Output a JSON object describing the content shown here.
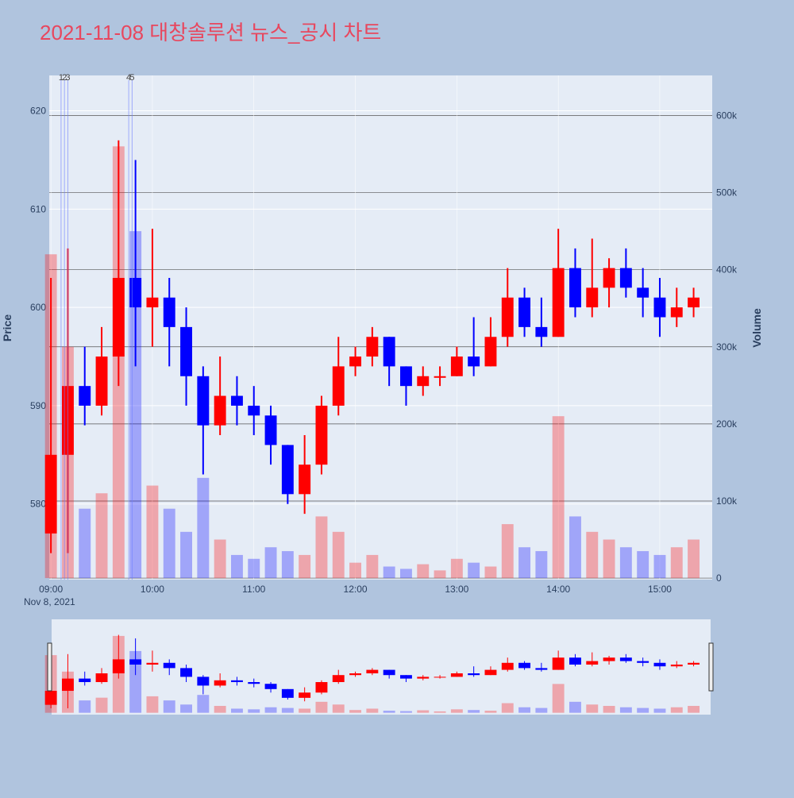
{
  "chart_data": {
    "type": "candlestick",
    "title": "2021-11-08 대창솔루션 뉴스_공시 차트",
    "x_date_label": "Nov 8, 2021",
    "y_title": "Price",
    "y2_title": "Volume",
    "xlim": [
      "08:59",
      "15:31"
    ],
    "xticks": [
      "09:00",
      "10:00",
      "11:00",
      "12:00",
      "13:00",
      "14:00",
      "15:00"
    ],
    "ylim": [
      572.3,
      623.6
    ],
    "yticks": [
      580,
      590,
      600,
      610,
      620
    ],
    "y2lim": [
      -2000,
      652000
    ],
    "y2ticks": [
      0,
      {
        "value": 100000,
        "label": "100k"
      },
      {
        "value": 200000,
        "label": "200k"
      },
      {
        "value": 300000,
        "label": "300k"
      },
      {
        "value": 400000,
        "label": "400k"
      },
      {
        "value": 500000,
        "label": "500k"
      },
      {
        "value": 600000,
        "label": "600k"
      }
    ],
    "up_color": "#ff0000",
    "down_color": "#0000ff",
    "x": [
      "09:00",
      "09:10",
      "09:20",
      "09:30",
      "09:40",
      "09:50",
      "10:00",
      "10:10",
      "10:20",
      "10:30",
      "10:40",
      "10:50",
      "11:00",
      "11:10",
      "11:20",
      "11:30",
      "11:40",
      "11:50",
      "12:00",
      "12:10",
      "12:20",
      "12:30",
      "12:40",
      "12:50",
      "13:00",
      "13:10",
      "13:20",
      "13:30",
      "13:40",
      "13:50",
      "14:00",
      "14:10",
      "14:20",
      "14:30",
      "14:40",
      "14:50",
      "15:00",
      "15:10",
      "15:20"
    ],
    "open": [
      577,
      585,
      592,
      590,
      595,
      603,
      600,
      601,
      598,
      593,
      588,
      591,
      590,
      589,
      586,
      581,
      584,
      590,
      594,
      595,
      597,
      594,
      592,
      593,
      593,
      595,
      594,
      597,
      601,
      598,
      597,
      604,
      600,
      602,
      604,
      602,
      601,
      599,
      600
    ],
    "high": [
      603,
      606,
      596,
      598,
      617,
      615,
      608,
      603,
      600,
      594,
      595,
      593,
      592,
      590,
      586,
      587,
      591,
      597,
      596,
      598,
      597,
      594,
      594,
      594,
      596,
      599,
      599,
      604,
      602,
      601,
      608,
      606,
      607,
      605,
      606,
      604,
      603,
      602,
      602
    ],
    "low": [
      575,
      575,
      588,
      589,
      592,
      594,
      596,
      594,
      590,
      583,
      587,
      588,
      587,
      584,
      580,
      579,
      583,
      589,
      593,
      594,
      592,
      590,
      591,
      592,
      593,
      593,
      594,
      596,
      597,
      596,
      597,
      599,
      599,
      600,
      601,
      599,
      597,
      598,
      599
    ],
    "close": [
      585,
      592,
      590,
      595,
      603,
      600,
      601,
      598,
      593,
      588,
      591,
      590,
      589,
      586,
      581,
      584,
      590,
      594,
      595,
      597,
      594,
      592,
      593,
      593,
      595,
      594,
      597,
      601,
      598,
      597,
      604,
      600,
      602,
      604,
      602,
      601,
      599,
      600,
      601
    ],
    "volume": [
      420000,
      300000,
      90000,
      110000,
      560000,
      450000,
      120000,
      90000,
      60000,
      130000,
      50000,
      30000,
      25000,
      40000,
      35000,
      30000,
      80000,
      60000,
      20000,
      30000,
      15000,
      12000,
      18000,
      10000,
      25000,
      20000,
      15000,
      70000,
      40000,
      35000,
      210000,
      80000,
      60000,
      50000,
      40000,
      35000,
      30000,
      40000,
      50000
    ],
    "annotations": [
      {
        "x": "09:06",
        "text": "1"
      },
      {
        "x": "09:08",
        "text": "2"
      },
      {
        "x": "09:10",
        "text": "3"
      },
      {
        "x": "09:46",
        "text": "4"
      },
      {
        "x": "09:48",
        "text": "5"
      }
    ]
  }
}
